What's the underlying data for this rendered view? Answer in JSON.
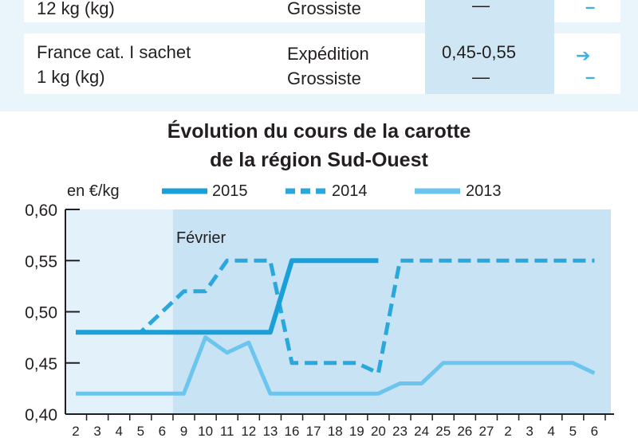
{
  "table": {
    "rows": [
      {
        "product_lines": [
          "12 kg (kg)"
        ],
        "stages": [
          "Grossiste"
        ],
        "prices": [
          "—"
        ],
        "trends": [
          "–"
        ]
      },
      {
        "product_lines": [
          "France cat. I sachet",
          "1 kg (kg)"
        ],
        "stages": [
          "Expédition",
          "Grossiste"
        ],
        "prices": [
          "0,45-0,55",
          "—"
        ],
        "trends": [
          "➔",
          "–"
        ]
      }
    ]
  },
  "colors": {
    "s2015": "#1a9fd9",
    "s2014": "#2aa8de",
    "s2013": "#6cc5ee",
    "plot_bg": "#e3f1fa",
    "plot_bg_feb": "#c8e3f3",
    "panel": "#eaf4fb"
  },
  "chart_data": {
    "type": "line",
    "title_lines": [
      "Évolution du cours de la carotte",
      "de la région Sud-Ouest"
    ],
    "ylabel": "en €/kg",
    "ylim": [
      0.4,
      0.6
    ],
    "yticks": [
      "0,60",
      "0,55",
      "0,50",
      "0,45",
      "0,40"
    ],
    "ytick_values": [
      0.6,
      0.55,
      0.5,
      0.45,
      0.4
    ],
    "annotation": "Février",
    "categories": [
      "2",
      "3",
      "4",
      "5",
      "6",
      "9",
      "10",
      "11",
      "12",
      "13",
      "16",
      "17",
      "18",
      "19",
      "20",
      "23",
      "24",
      "25",
      "26",
      "27",
      "2",
      "3",
      "4",
      "5",
      "6"
    ],
    "legend_position": "top",
    "series": [
      {
        "name": "2015",
        "style": "solid",
        "values": [
          0.48,
          0.48,
          0.48,
          0.48,
          0.48,
          0.48,
          0.48,
          0.48,
          0.48,
          0.48,
          0.55,
          0.55,
          0.55,
          0.55,
          0.55,
          null,
          null,
          null,
          null,
          null,
          null,
          null,
          null,
          null,
          null
        ]
      },
      {
        "name": "2014",
        "style": "dashed",
        "values": [
          0.48,
          0.48,
          0.48,
          0.48,
          0.5,
          0.52,
          0.52,
          0.55,
          0.55,
          0.55,
          0.45,
          0.45,
          0.45,
          0.45,
          0.44,
          0.55,
          0.55,
          0.55,
          0.55,
          0.55,
          0.55,
          0.55,
          0.55,
          0.55,
          0.55
        ]
      },
      {
        "name": "2013",
        "style": "light",
        "values": [
          0.42,
          0.42,
          0.42,
          0.42,
          0.42,
          0.42,
          0.475,
          0.46,
          0.47,
          0.42,
          0.42,
          0.42,
          0.42,
          0.42,
          0.42,
          0.43,
          0.43,
          0.45,
          0.45,
          0.45,
          0.45,
          0.45,
          0.45,
          0.45,
          0.44
        ]
      }
    ]
  }
}
